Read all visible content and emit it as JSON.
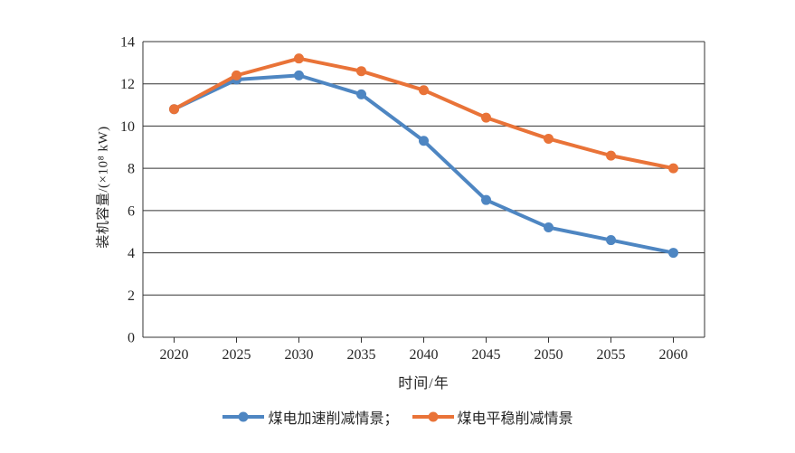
{
  "chart_data": {
    "type": "line",
    "categories": [
      "2020",
      "2025",
      "2030",
      "2035",
      "2040",
      "2045",
      "2050",
      "2055",
      "2060"
    ],
    "series": [
      {
        "name": "煤电加速削减情景",
        "color": "#4E86C2",
        "values": [
          10.8,
          12.2,
          12.4,
          11.5,
          9.3,
          6.5,
          5.2,
          4.6,
          4.0
        ]
      },
      {
        "name": "煤电平稳削减情景",
        "color": "#E97338",
        "values": [
          10.8,
          12.4,
          13.2,
          12.6,
          11.7,
          10.4,
          9.4,
          8.6,
          8.0
        ]
      }
    ],
    "title": "",
    "xlabel": "时间/年",
    "ylabel": "装机容量/(×10⁸ kW)",
    "ylim": [
      0,
      14
    ],
    "ytick_step": 2,
    "grid": true,
    "legend_position": "bottom",
    "legend_labels": [
      "煤电加速削减情景；",
      "煤电平稳削减情景"
    ]
  },
  "style": {
    "axis_color": "#333333",
    "tick_text_color": "#262626"
  }
}
